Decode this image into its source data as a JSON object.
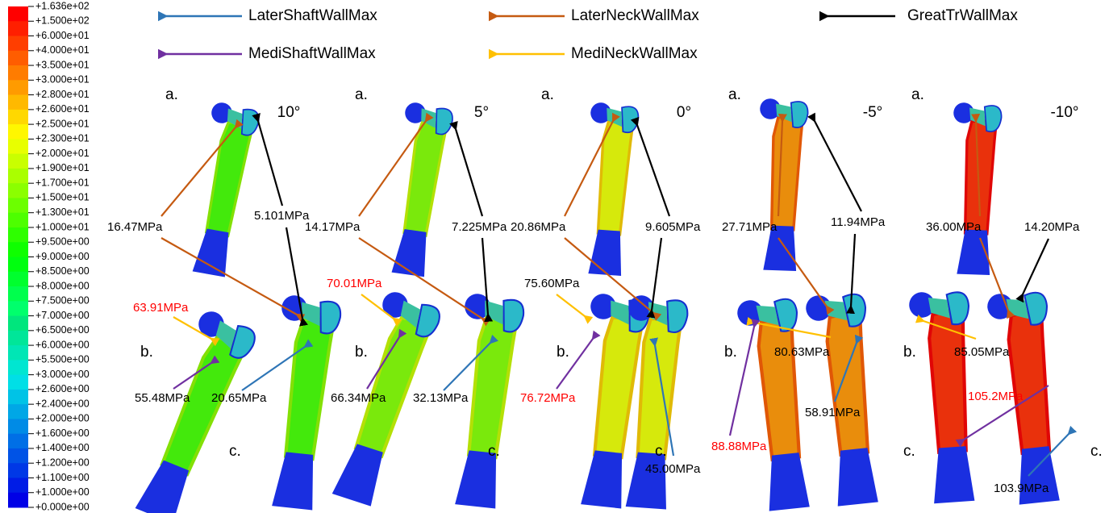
{
  "legend": [
    {
      "name": "LaterShaftWallMax",
      "color": "#2e75b6"
    },
    {
      "name": "LaterNeckWallMax",
      "color": "#c55a11"
    },
    {
      "name": "GreatTrWallMax",
      "color": "#000000"
    },
    {
      "name": "MediShaftWallMax",
      "color": "#7030a0"
    },
    {
      "name": "MediNeckWallMax",
      "color": "#ffc000"
    }
  ],
  "colorbar": [
    "+1.636e+02",
    "+1.500e+02",
    "+6.000e+01",
    "+4.000e+01",
    "+3.500e+01",
    "+3.000e+01",
    "+2.800e+01",
    "+2.600e+01",
    "+2.500e+01",
    "+2.300e+01",
    "+2.000e+01",
    "+1.900e+01",
    "+1.700e+01",
    "+1.500e+01",
    "+1.300e+01",
    "+1.000e+01",
    "+9.500e+00",
    "+9.000e+00",
    "+8.500e+00",
    "+8.000e+00",
    "+7.500e+00",
    "+7.000e+00",
    "+6.500e+00",
    "+6.000e+00",
    "+5.500e+00",
    "+3.000e+00",
    "+2.600e+00",
    "+2.400e+00",
    "+2.000e+00",
    "+1.600e+00",
    "+1.400e+00",
    "+1.200e+00",
    "+1.100e+00",
    "+1.000e+00",
    "+0.000e+00"
  ],
  "panels": [
    {
      "angle": "10°",
      "labels": [
        "a.",
        "b.",
        "c."
      ],
      "annotations": [
        {
          "kind": 1,
          "text": "16.47MPa",
          "color": "#000000"
        },
        {
          "kind": 2,
          "text": "5.101MPa",
          "color": "#000000"
        },
        {
          "kind": 4,
          "text": "63.91MPa",
          "color": "#ff0000"
        },
        {
          "kind": 3,
          "text": "55.48MPa",
          "color": "#000000"
        },
        {
          "kind": 0,
          "text": "20.65MPa",
          "color": "#000000"
        }
      ]
    },
    {
      "angle": "5°",
      "labels": [
        "a.",
        "b.",
        "c."
      ],
      "annotations": [
        {
          "kind": 1,
          "text": "14.17MPa",
          "color": "#000000"
        },
        {
          "kind": 2,
          "text": "7.225MPa",
          "color": "#000000"
        },
        {
          "kind": 4,
          "text": "70.01MPa",
          "color": "#ff0000"
        },
        {
          "kind": 3,
          "text": "66.34MPa",
          "color": "#000000"
        },
        {
          "kind": 0,
          "text": "32.13MPa",
          "color": "#000000"
        }
      ]
    },
    {
      "angle": "0°",
      "labels": [
        "a.",
        "b.",
        "c."
      ],
      "annotations": [
        {
          "kind": 1,
          "text": "20.86MPa",
          "color": "#000000"
        },
        {
          "kind": 2,
          "text": "9.605MPa",
          "color": "#000000"
        },
        {
          "kind": 4,
          "text": "75.60MPa",
          "color": "#000000"
        },
        {
          "kind": 3,
          "text": "76.72MPa",
          "color": "#ff0000"
        },
        {
          "kind": 0,
          "text": "45.00MPa",
          "color": "#000000"
        }
      ]
    },
    {
      "angle": "-5°",
      "labels": [
        "a.",
        "b.",
        "c."
      ],
      "annotations": [
        {
          "kind": 1,
          "text": "27.71MPa",
          "color": "#000000"
        },
        {
          "kind": 2,
          "text": "11.94MPa",
          "color": "#000000"
        },
        {
          "kind": 4,
          "text": "80.63MPa",
          "color": "#000000"
        },
        {
          "kind": 3,
          "text": "88.88MPa",
          "color": "#ff0000"
        },
        {
          "kind": 0,
          "text": "58.91MPa",
          "color": "#000000"
        }
      ]
    },
    {
      "angle": "-10°",
      "labels": [
        "a.",
        "b.",
        "c."
      ],
      "annotations": [
        {
          "kind": 1,
          "text": "36.00MPa",
          "color": "#000000"
        },
        {
          "kind": 2,
          "text": "14.20MPa",
          "color": "#000000"
        },
        {
          "kind": 4,
          "text": "85.05MPa",
          "color": "#000000"
        },
        {
          "kind": 3,
          "text": "105.2MPa",
          "color": "#ff0000"
        },
        {
          "kind": 0,
          "text": "103.9MPa",
          "color": "#000000"
        }
      ]
    }
  ]
}
